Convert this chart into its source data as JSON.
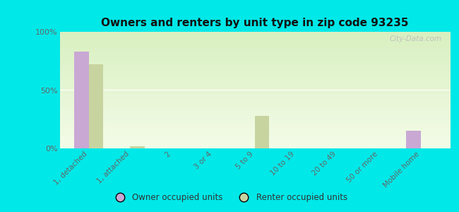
{
  "title": "Owners and renters by unit type in zip code 93235",
  "categories": [
    "1, detached",
    "1, attached",
    "2",
    "3 or 4",
    "5 to 9",
    "10 to 19",
    "20 to 49",
    "50 or more",
    "Mobile home"
  ],
  "owner_values": [
    83,
    0,
    0,
    0,
    0,
    0,
    0,
    0,
    15
  ],
  "renter_values": [
    72,
    2,
    0,
    0,
    28,
    0,
    0,
    0,
    0
  ],
  "owner_color": "#c9a8d4",
  "renter_color": "#c8d4a0",
  "gradient_top": "#d8f0c0",
  "gradient_bottom": "#f4fce8",
  "outer_bg": "#00e8e8",
  "ylim": [
    0,
    100
  ],
  "yticks": [
    0,
    50,
    100
  ],
  "ytick_labels": [
    "0%",
    "50%",
    "100%"
  ],
  "bar_width": 0.35,
  "legend_owner": "Owner occupied units",
  "legend_renter": "Renter occupied units",
  "watermark": "City-Data.com"
}
